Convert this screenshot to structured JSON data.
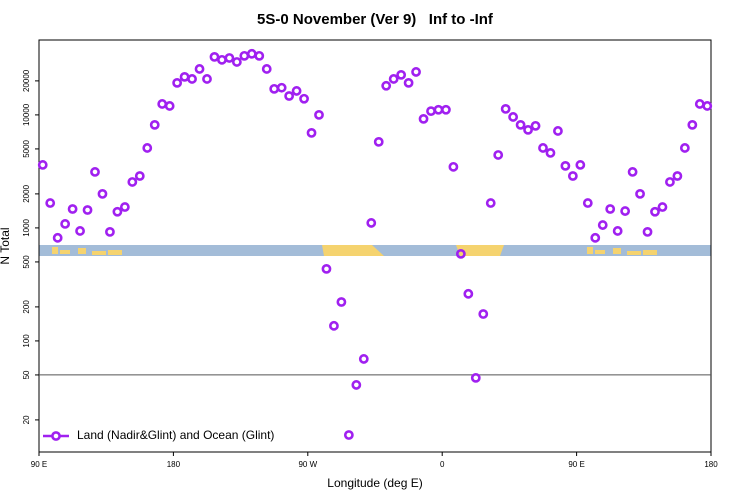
{
  "chart_data": {
    "type": "scatter",
    "title": "5S-0 November (Ver 9)   Inf to -Inf",
    "x_label": "Longitude (deg E)",
    "y_label": "N Total",
    "log_y": true,
    "legend": "bottom-left",
    "hline": 50,
    "xlim": [
      90,
      540
    ],
    "xticks": [
      {
        "value": 90,
        "label": "90 E"
      },
      180,
      {
        "value": 270,
        "label": "90 W"
      },
      {
        "value": 360,
        "label": "0"
      },
      {
        "value": 450,
        "label": "90 E"
      },
      {
        "value": 540,
        "label": "180"
      }
    ],
    "ylim": [
      10.4,
      46000
    ],
    "yticks": [
      20,
      50,
      100,
      200,
      500,
      1000,
      2000,
      5000,
      10000,
      20000
    ],
    "series": [
      {
        "name": "Land (Nadir&Glint) and Ocean (Glint)",
        "color": "#a020f0",
        "x": [
          92.5,
          97.5,
          102.5,
          107.5,
          112.5,
          117.5,
          122.5,
          127.5,
          132.5,
          137.5,
          142.5,
          147.5,
          152.5,
          157.5,
          162.5,
          167.5,
          172.5,
          177.5,
          182.5,
          187.5,
          192.5,
          197.5,
          202.5,
          207.5,
          212.5,
          217.5,
          222.5,
          227.5,
          232.5,
          237.5,
          242.5,
          247.5,
          252.5,
          257.5,
          262.5,
          267.5,
          272.5,
          277.5,
          282.5,
          287.5,
          292.5,
          297.5,
          302.5,
          307.5,
          312.5,
          317.5,
          322.5,
          327.5,
          332.5,
          337.5,
          342.5,
          347.5,
          352.5,
          357.5,
          362.5,
          367.5,
          372.5,
          377.5,
          382.5,
          387.5,
          392.5,
          397.5,
          402.5,
          407.5,
          412.5,
          417.5,
          422.5,
          427.5,
          432.5,
          437.5,
          442.5,
          447.5,
          452.5,
          457.5,
          462.5,
          467.5,
          472.5,
          477.5,
          482.5,
          487.5,
          492.5,
          497.5,
          502.5,
          507.5,
          512.5,
          517.5,
          522.5,
          527.5,
          532.5,
          537.5
        ],
        "values": [
          3610,
          1660,
          817,
          1085,
          1470,
          940,
          1440,
          3130,
          2000,
          922,
          1390,
          1530,
          2550,
          2880,
          5100,
          8160,
          12500,
          12000,
          19200,
          21700,
          20800,
          25500,
          20800,
          32600,
          30700,
          31900,
          29400,
          33300,
          34700,
          33300,
          25500,
          17000,
          17400,
          14700,
          16300,
          13900,
          6930,
          10000,
          434,
          136,
          221,
          14.7,
          40.8,
          69.3,
          1107,
          5770,
          18100,
          20800,
          22600,
          19200,
          24000,
          9220,
          10800,
          11100,
          11100,
          3470,
          589,
          261,
          47.1,
          173,
          1660,
          4420,
          11300,
          9590,
          8160,
          7370,
          8000,
          5100,
          4610,
          7210,
          3540,
          2880,
          3610,
          1660,
          817,
          1060,
          1470,
          940,
          1410,
          3130,
          2000,
          922,
          1390,
          1530,
          2550,
          2880,
          5100,
          8160,
          12500,
          12000
        ]
      }
    ]
  }
}
